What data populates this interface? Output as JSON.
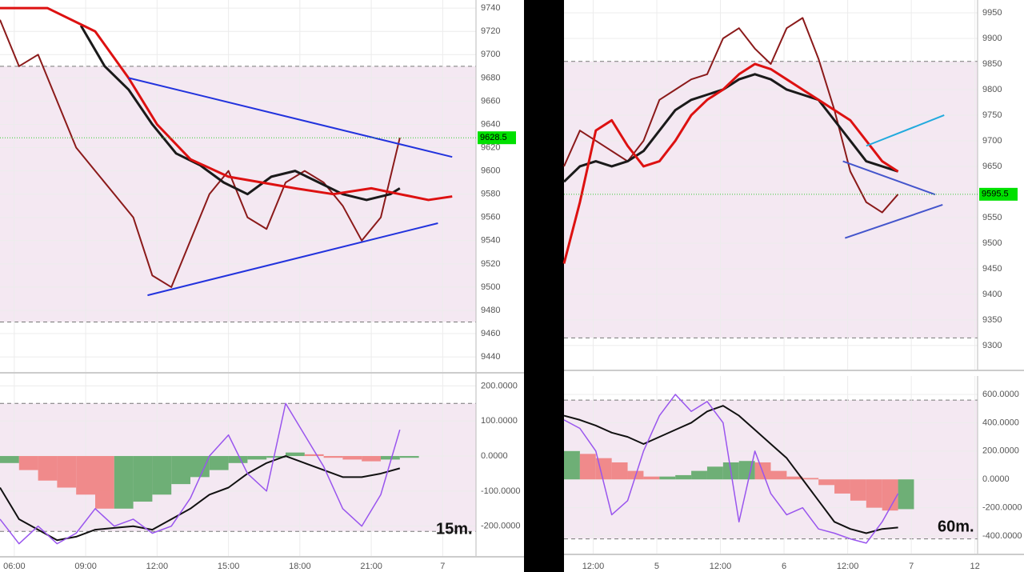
{
  "chart_data": [
    {
      "type": "line",
      "xlim": [
        0,
        100
      ],
      "ylim": [
        9427,
        9747
      ],
      "yticks": [
        9740,
        9720,
        9700,
        9680,
        9660,
        9640,
        9620,
        9600,
        9580,
        9560,
        9540,
        9520,
        9500,
        9480,
        9460,
        9440
      ],
      "band": [
        9470,
        9690
      ],
      "last_price": 9628.5,
      "series": [
        {
          "color": "#8b1a1a",
          "width": 2,
          "x": [
            0,
            4,
            8,
            12,
            16,
            20,
            24,
            28,
            32,
            36,
            40,
            44,
            48,
            52,
            56,
            60,
            64,
            68,
            72,
            76,
            80,
            84
          ],
          "values": [
            9730,
            9690,
            9700,
            9660,
            9620,
            9600,
            9580,
            9560,
            9510,
            9500,
            9540,
            9580,
            9600,
            9560,
            9550,
            9590,
            9600,
            9590,
            9570,
            9540,
            9560,
            9628.5
          ]
        },
        {
          "color": "#1a1a1a",
          "width": 3,
          "x": [
            17,
            22,
            27,
            32,
            37,
            42,
            47,
            52,
            57,
            62,
            67,
            72,
            77,
            82,
            84
          ],
          "values": [
            9725,
            9690,
            9670,
            9640,
            9615,
            9605,
            9590,
            9580,
            9595,
            9600,
            9590,
            9580,
            9575,
            9580,
            9585
          ]
        },
        {
          "color": "#dd1111",
          "width": 3,
          "x": [
            0,
            10,
            20,
            27,
            33,
            40,
            48,
            55,
            62,
            70,
            78,
            84,
            90,
            95
          ],
          "values": [
            9740,
            9740,
            9720,
            9680,
            9640,
            9610,
            9595,
            9590,
            9585,
            9580,
            9585,
            9580,
            9575,
            9578
          ]
        },
        {
          "color": "#2233dd",
          "width": 2,
          "x": [
            27,
            95
          ],
          "values": [
            9680,
            9612
          ]
        },
        {
          "color": "#2233dd",
          "width": 2,
          "x": [
            31,
            92
          ],
          "values": [
            9493,
            9555
          ]
        }
      ]
    },
    {
      "type": "combo",
      "xlim": [
        0,
        100
      ],
      "ylim": [
        -285,
        235
      ],
      "yticks": [
        {
          "value": 200,
          "label": "200.0000"
        },
        {
          "value": 100,
          "label": "100.0000"
        },
        {
          "value": 0,
          "label": "0.0000"
        },
        {
          "value": -100,
          "label": "-100.0000"
        },
        {
          "value": -200,
          "label": "-200.0000"
        }
      ],
      "xticks": [
        {
          "value": 3,
          "label": "06:00"
        },
        {
          "value": 18,
          "label": "09:00"
        },
        {
          "value": 33,
          "label": "12:00"
        },
        {
          "value": 48,
          "label": "15:00"
        },
        {
          "value": 63,
          "label": "18:00"
        },
        {
          "value": 78,
          "label": "21:00"
        },
        {
          "value": 93,
          "label": "7"
        }
      ],
      "band": [
        -215,
        150
      ],
      "label": "15m.",
      "up_color": "#5fa868",
      "down_color": "#f08080",
      "series": [
        {
          "type": "bar",
          "x": [
            0,
            4,
            8,
            12,
            16,
            20,
            24,
            28,
            32,
            36,
            40,
            44,
            48,
            52,
            56,
            60,
            64,
            68,
            72,
            76,
            80,
            84
          ],
          "values": [
            -20,
            -40,
            -70,
            -90,
            -110,
            -150,
            -150,
            -130,
            -110,
            -80,
            -60,
            -40,
            -20,
            -10,
            -5,
            10,
            5,
            -5,
            -10,
            -15,
            -10,
            -5
          ]
        },
        {
          "type": "line",
          "color": "#111111",
          "width": 2,
          "x": [
            0,
            4,
            8,
            12,
            16,
            20,
            24,
            28,
            32,
            36,
            40,
            44,
            48,
            52,
            56,
            60,
            64,
            68,
            72,
            76,
            80,
            84
          ],
          "values": [
            -90,
            -180,
            -210,
            -240,
            -230,
            -210,
            -205,
            -200,
            -210,
            -180,
            -150,
            -110,
            -90,
            -50,
            -20,
            0,
            -20,
            -40,
            -60,
            -60,
            -50,
            -35
          ]
        },
        {
          "type": "line",
          "color": "#9955ee",
          "width": 1.5,
          "x": [
            0,
            4,
            8,
            12,
            16,
            20,
            24,
            28,
            32,
            36,
            40,
            44,
            48,
            52,
            56,
            60,
            64,
            68,
            72,
            76,
            80,
            84
          ],
          "values": [
            -180,
            -250,
            -200,
            -250,
            -220,
            -150,
            -200,
            -180,
            -220,
            -200,
            -120,
            0,
            60,
            -50,
            -100,
            150,
            60,
            -30,
            -150,
            -200,
            -110,
            75
          ]
        }
      ]
    },
    {
      "type": "line",
      "xlim": [
        0,
        78
      ],
      "ylim": [
        9253,
        9975
      ],
      "yticks": [
        9950,
        9900,
        9850,
        9800,
        9750,
        9700,
        9650,
        9600,
        9550,
        9500,
        9450,
        9400,
        9350,
        9300
      ],
      "band": [
        9315,
        9855
      ],
      "last_price": 9595.5,
      "series": [
        {
          "color": "#8b1a1a",
          "width": 2,
          "x": [
            0,
            3,
            6,
            9,
            12,
            15,
            18,
            21,
            24,
            27,
            30,
            33,
            36,
            39,
            42,
            45,
            48,
            51,
            54,
            57,
            60,
            63
          ],
          "values": [
            9650,
            9720,
            9700,
            9680,
            9660,
            9700,
            9780,
            9800,
            9820,
            9830,
            9900,
            9920,
            9880,
            9850,
            9920,
            9940,
            9860,
            9760,
            9640,
            9580,
            9560,
            9595.5
          ]
        },
        {
          "color": "#1a1a1a",
          "width": 3,
          "x": [
            0,
            3,
            6,
            9,
            12,
            15,
            18,
            21,
            24,
            27,
            30,
            33,
            36,
            39,
            42,
            45,
            48,
            51,
            54,
            57,
            60,
            63
          ],
          "values": [
            9620,
            9650,
            9660,
            9650,
            9660,
            9680,
            9720,
            9760,
            9780,
            9790,
            9800,
            9820,
            9830,
            9820,
            9800,
            9790,
            9780,
            9740,
            9700,
            9660,
            9650,
            9640
          ]
        },
        {
          "color": "#dd1111",
          "width": 3,
          "x": [
            0,
            3,
            6,
            9,
            12,
            15,
            18,
            21,
            24,
            27,
            30,
            33,
            36,
            39,
            42,
            45,
            48,
            51,
            54,
            57,
            60,
            63
          ],
          "values": [
            9460,
            9580,
            9720,
            9740,
            9690,
            9650,
            9660,
            9700,
            9750,
            9780,
            9800,
            9830,
            9850,
            9840,
            9820,
            9800,
            9780,
            9760,
            9740,
            9700,
            9660,
            9640
          ]
        },
        {
          "color": "#4455cc",
          "width": 2,
          "x": [
            52.6,
            70
          ],
          "values": [
            9660,
            9595
          ]
        },
        {
          "color": "#4455cc",
          "width": 2,
          "x": [
            53,
            71.4
          ],
          "values": [
            9510,
            9575
          ]
        },
        {
          "color": "#22aadd",
          "width": 2,
          "x": [
            57,
            71.7
          ],
          "values": [
            9690,
            9750
          ]
        }
      ]
    },
    {
      "type": "combo",
      "xlim": [
        0,
        78
      ],
      "ylim": [
        -524,
        730
      ],
      "yticks": [
        {
          "value": 600,
          "label": "600.0000"
        },
        {
          "value": 400,
          "label": "400.0000"
        },
        {
          "value": 200,
          "label": "200.0000"
        },
        {
          "value": 0,
          "label": "0.0000"
        },
        {
          "value": -200,
          "label": "-200.0000"
        },
        {
          "value": -400,
          "label": "-400.0000"
        }
      ],
      "xticks": [
        {
          "value": 5.5,
          "label": "12:00"
        },
        {
          "value": 17.5,
          "label": "5"
        },
        {
          "value": 29.5,
          "label": "12:00"
        },
        {
          "value": 41.5,
          "label": "6"
        },
        {
          "value": 53.5,
          "label": "12:00"
        },
        {
          "value": 65.5,
          "label": "7"
        },
        {
          "value": 77.5,
          "label": "12"
        }
      ],
      "band": [
        -420,
        560
      ],
      "label": "60m.",
      "up_color": "#5fa868",
      "down_color": "#f08080",
      "series": [
        {
          "type": "bar",
          "x": [
            0,
            3,
            6,
            9,
            12,
            15,
            18,
            21,
            24,
            27,
            30,
            33,
            36,
            39,
            42,
            45,
            48,
            51,
            54,
            57,
            60,
            63
          ],
          "values": [
            200,
            180,
            150,
            120,
            60,
            20,
            20,
            30,
            60,
            90,
            120,
            130,
            120,
            60,
            20,
            10,
            -40,
            -100,
            -150,
            -200,
            -220,
            -210
          ]
        },
        {
          "type": "line",
          "color": "#111111",
          "width": 2,
          "x": [
            0,
            3,
            6,
            9,
            12,
            15,
            18,
            21,
            24,
            27,
            30,
            33,
            36,
            39,
            42,
            45,
            48,
            51,
            54,
            57,
            60,
            63
          ],
          "values": [
            450,
            420,
            380,
            330,
            300,
            250,
            300,
            350,
            400,
            480,
            520,
            450,
            350,
            250,
            150,
            0,
            -150,
            -300,
            -350,
            -380,
            -350,
            -340
          ]
        },
        {
          "type": "line",
          "color": "#9955ee",
          "width": 1.5,
          "x": [
            0,
            3,
            6,
            9,
            12,
            15,
            18,
            21,
            24,
            27,
            30,
            33,
            36,
            39,
            42,
            45,
            48,
            51,
            54,
            57,
            60,
            63
          ],
          "values": [
            420,
            360,
            200,
            -250,
            -150,
            200,
            450,
            600,
            480,
            550,
            400,
            -300,
            200,
            -100,
            -250,
            -200,
            -350,
            -380,
            -420,
            -450,
            -300,
            -100
          ]
        }
      ]
    }
  ]
}
